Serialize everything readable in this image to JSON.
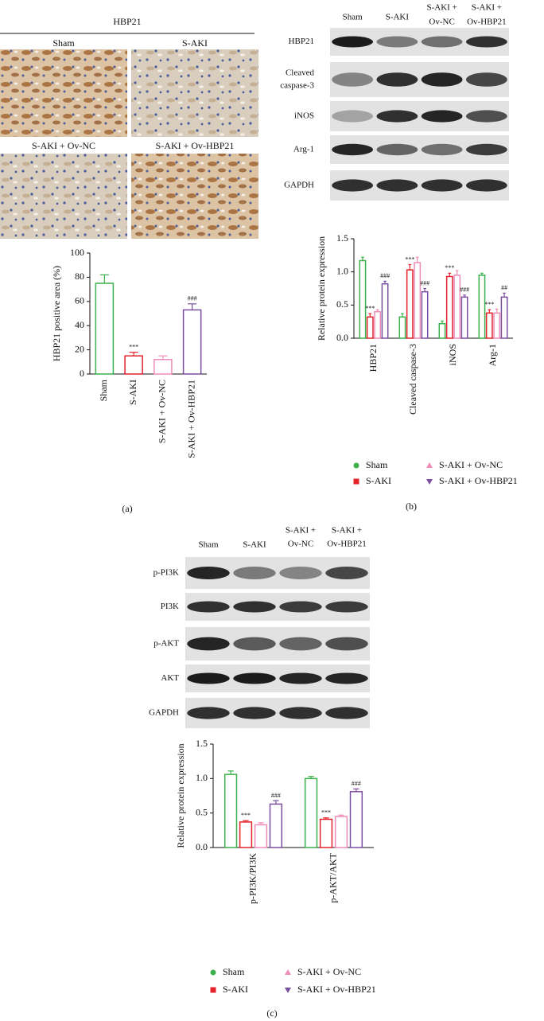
{
  "panels": {
    "a": {
      "label": "(a)",
      "title": "HBP21",
      "images": [
        "Sham",
        "S-AKI",
        "S-AKI + Ov-NC",
        "S-AKI + Ov-HBP21"
      ]
    },
    "b": {
      "label": "(b)",
      "lanes": [
        [
          "Sham"
        ],
        [
          "S-AKI"
        ],
        [
          "S-AKI +",
          "Ov-NC"
        ],
        [
          "S-AKI +",
          "Ov-HBP21"
        ]
      ],
      "rows": [
        [
          "HBP21"
        ],
        [
          "Cleaved",
          "caspase-3"
        ],
        [
          "iNOS"
        ],
        [
          "Arg-1"
        ],
        [
          "GAPDH"
        ]
      ]
    },
    "c": {
      "label": "(c)",
      "lanes": [
        [
          "Sham"
        ],
        [
          "S-AKI"
        ],
        [
          "S-AKI +",
          "Ov-NC"
        ],
        [
          "S-AKI +",
          "Ov-HBP21"
        ]
      ],
      "rows": [
        [
          "p-PI3K"
        ],
        [
          "PI3K"
        ],
        [
          "p-AKT"
        ],
        [
          "AKT"
        ],
        [
          "GAPDH"
        ]
      ]
    }
  },
  "chart_data": [
    {
      "type": "bar",
      "ylabel": "HBP21 positive area (%)",
      "categories": [
        "Sham",
        "S-AKI",
        "S-AKI + Ov-NC",
        "S-AKI + Ov-HBP21"
      ],
      "values": [
        75,
        15,
        12,
        53
      ],
      "errors": [
        7,
        3,
        3,
        5
      ],
      "colors": [
        "#3cb04a",
        "#e3222b",
        "#f08cb8",
        "#7b4fa0"
      ],
      "annotations": [
        null,
        "***",
        null,
        "###"
      ],
      "ylim": [
        0,
        100
      ],
      "yticks": [
        0,
        20,
        40,
        60,
        80,
        100
      ]
    },
    {
      "type": "bar",
      "ylabel": "Relative protein expression",
      "categories": [
        "HBP21",
        "Cleaved caspase-3",
        "iNOS",
        "Arg-1"
      ],
      "series": [
        {
          "name": "Sham",
          "color": "#3cb04a",
          "marker": "circle",
          "values": [
            1.17,
            0.32,
            0.22,
            0.95
          ],
          "errors": [
            0.05,
            0.05,
            0.04,
            0.03
          ]
        },
        {
          "name": "S-AKI",
          "color": "#e3222b",
          "marker": "square",
          "values": [
            0.32,
            1.03,
            0.93,
            0.38
          ],
          "errors": [
            0.05,
            0.08,
            0.05,
            0.05
          ],
          "annotations": [
            "***",
            "***",
            "***",
            "***"
          ]
        },
        {
          "name": "S-AKI + Ov-NC",
          "color": "#f08cb8",
          "marker": "triangle-up",
          "values": [
            0.4,
            1.14,
            0.95,
            0.38
          ],
          "errors": [
            0.03,
            0.08,
            0.07,
            0.06
          ]
        },
        {
          "name": "S-AKI + Ov-HBP21",
          "color": "#7b4fa0",
          "marker": "triangle-down",
          "values": [
            0.82,
            0.7,
            0.62,
            0.62
          ],
          "errors": [
            0.04,
            0.05,
            0.03,
            0.06
          ],
          "annotations": [
            "###",
            "###",
            "###",
            "##"
          ]
        }
      ],
      "ylim": [
        0,
        1.5
      ],
      "yticks": [
        {
          "value": 0,
          "label": "0.0"
        },
        0.5,
        {
          "value": 1,
          "label": "1.0"
        },
        1.5
      ]
    },
    {
      "type": "bar",
      "ylabel": "Relative protein expression",
      "categories": [
        "p-PI3K/PI3K",
        "p-AKT/AKT"
      ],
      "series": [
        {
          "name": "Sham",
          "color": "#3cb04a",
          "marker": "circle",
          "values": [
            1.06,
            1.0
          ],
          "errors": [
            0.05,
            0.03
          ]
        },
        {
          "name": "S-AKI",
          "color": "#e3222b",
          "marker": "square",
          "values": [
            0.37,
            0.41
          ],
          "errors": [
            0.02,
            0.02
          ],
          "annotations": [
            "***",
            "***"
          ]
        },
        {
          "name": "S-AKI + Ov-NC",
          "color": "#f08cb8",
          "marker": "triangle-up",
          "values": [
            0.33,
            0.45
          ],
          "errors": [
            0.03,
            0.02
          ]
        },
        {
          "name": "S-AKI + Ov-HBP21",
          "color": "#7b4fa0",
          "marker": "triangle-down",
          "values": [
            0.63,
            0.81
          ],
          "errors": [
            0.05,
            0.04
          ],
          "annotations": [
            "###",
            "###"
          ]
        }
      ],
      "ylim": [
        0,
        1.5
      ],
      "yticks": [
        {
          "value": 0,
          "label": "0.0"
        },
        0.5,
        {
          "value": 1,
          "label": "1.0"
        },
        1.5
      ]
    }
  ]
}
